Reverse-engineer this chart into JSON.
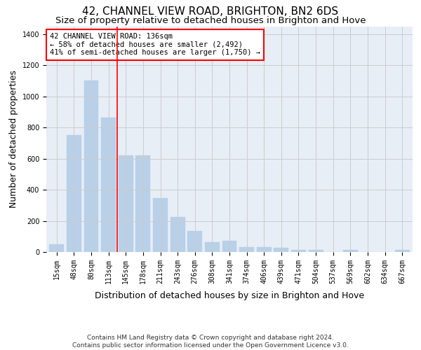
{
  "title": "42, CHANNEL VIEW ROAD, BRIGHTON, BN2 6DS",
  "subtitle": "Size of property relative to detached houses in Brighton and Hove",
  "xlabel": "Distribution of detached houses by size in Brighton and Hove",
  "ylabel": "Number of detached properties",
  "categories": [
    "15sqm",
    "48sqm",
    "80sqm",
    "113sqm",
    "145sqm",
    "178sqm",
    "211sqm",
    "243sqm",
    "276sqm",
    "308sqm",
    "341sqm",
    "374sqm",
    "406sqm",
    "439sqm",
    "471sqm",
    "504sqm",
    "537sqm",
    "569sqm",
    "602sqm",
    "634sqm",
    "667sqm"
  ],
  "values": [
    50,
    750,
    1100,
    865,
    620,
    620,
    345,
    225,
    135,
    62,
    70,
    32,
    30,
    25,
    15,
    15,
    0,
    12,
    0,
    0,
    12
  ],
  "bar_color": "#b8d0e8",
  "bar_edge_color": "#b8d0e8",
  "grid_color": "#cccccc",
  "background_color": "#e8eef6",
  "vline_x_index": 3.5,
  "vline_color": "red",
  "annotation_text": "42 CHANNEL VIEW ROAD: 136sqm\n← 58% of detached houses are smaller (2,492)\n41% of semi-detached houses are larger (1,750) →",
  "annotation_box_color": "white",
  "annotation_box_edge_color": "red",
  "footer": "Contains HM Land Registry data © Crown copyright and database right 2024.\nContains public sector information licensed under the Open Government Licence v3.0.",
  "ylim": [
    0,
    1450
  ],
  "title_fontsize": 11,
  "subtitle_fontsize": 9.5,
  "xlabel_fontsize": 9,
  "ylabel_fontsize": 9,
  "tick_fontsize": 7,
  "annotation_fontsize": 7.5,
  "footer_fontsize": 6.5
}
